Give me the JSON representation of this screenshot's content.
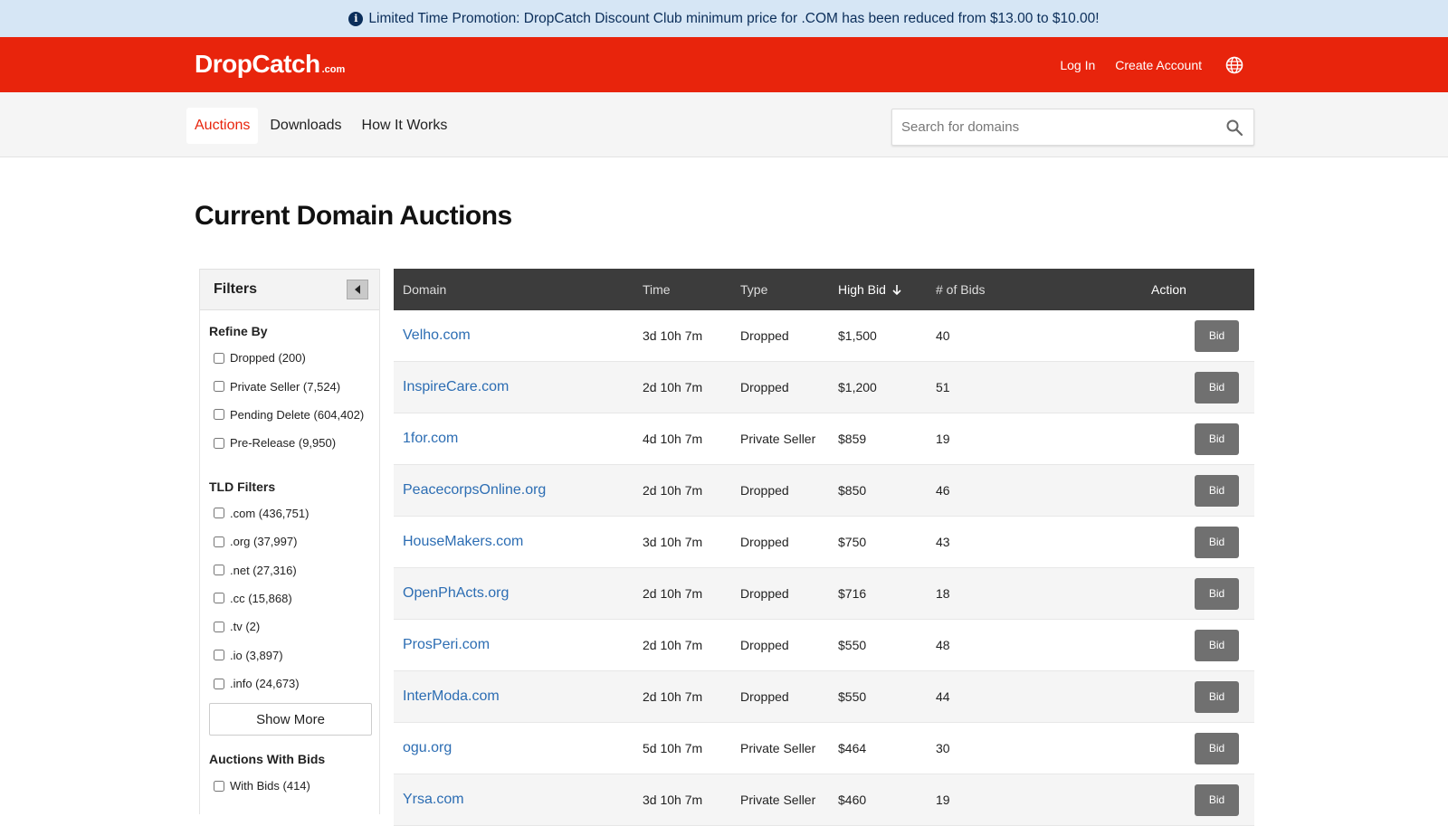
{
  "promo": {
    "text": "Limited Time Promotion: DropCatch Discount Club minimum price for .COM has been reduced from $13.00 to $10.00!"
  },
  "header": {
    "logo": "DropCatch",
    "logo_suffix": ".com",
    "login": "Log In",
    "create_account": "Create Account"
  },
  "nav": {
    "tabs": [
      "Auctions",
      "Downloads",
      "How It Works"
    ],
    "active": "Auctions"
  },
  "search": {
    "placeholder": "Search for domains",
    "value": ""
  },
  "page_title": "Current Domain Auctions",
  "filters": {
    "title": "Filters",
    "refine_title": "Refine By",
    "refine": [
      "Dropped (200)",
      "Private Seller (7,524)",
      "Pending Delete (604,402)",
      "Pre-Release (9,950)"
    ],
    "tld_title": "TLD Filters",
    "tld": [
      ".com (436,751)",
      ".org (37,997)",
      ".net (27,316)",
      ".cc (15,868)",
      ".tv (2)",
      ".io (3,897)",
      ".info (24,673)"
    ],
    "show_more": "Show More",
    "bids_title": "Auctions With Bids",
    "bids": [
      "With Bids (414)"
    ]
  },
  "table": {
    "headers": {
      "domain": "Domain",
      "time": "Time",
      "type": "Type",
      "high_bid": "High Bid",
      "num_bids": "# of Bids",
      "action": "Action"
    },
    "sort": "High Bid descending",
    "button_label": "Bid",
    "rows": [
      {
        "domain": "Velho.com",
        "time": "3d 10h 7m",
        "type": "Dropped",
        "bid": "$1,500",
        "bids": "40"
      },
      {
        "domain": "InspireCare.com",
        "time": "2d 10h 7m",
        "type": "Dropped",
        "bid": "$1,200",
        "bids": "51"
      },
      {
        "domain": "1for.com",
        "time": "4d 10h 7m",
        "type": "Private Seller",
        "bid": "$859",
        "bids": "19"
      },
      {
        "domain": "PeacecorpsOnline.org",
        "time": "2d 10h 7m",
        "type": "Dropped",
        "bid": "$850",
        "bids": "46"
      },
      {
        "domain": "HouseMakers.com",
        "time": "3d 10h 7m",
        "type": "Dropped",
        "bid": "$750",
        "bids": "43"
      },
      {
        "domain": "OpenPhActs.org",
        "time": "2d 10h 7m",
        "type": "Dropped",
        "bid": "$716",
        "bids": "18"
      },
      {
        "domain": "ProsPeri.com",
        "time": "2d 10h 7m",
        "type": "Dropped",
        "bid": "$550",
        "bids": "48"
      },
      {
        "domain": "InterModa.com",
        "time": "2d 10h 7m",
        "type": "Dropped",
        "bid": "$550",
        "bids": "44"
      },
      {
        "domain": "ogu.org",
        "time": "5d 10h 7m",
        "type": "Private Seller",
        "bid": "$464",
        "bids": "30"
      },
      {
        "domain": "Yrsa.com",
        "time": "3d 10h 7m",
        "type": "Private Seller",
        "bid": "$460",
        "bids": "19"
      }
    ]
  },
  "colors": {
    "brand_red": "#e8240c",
    "promo_bg": "#d6e6f5",
    "link_blue": "#2c6db3",
    "table_head": "#3c3c3c",
    "bid_button": "#707070"
  },
  "icons": {
    "promo": "info-icon",
    "language": "globe-icon",
    "search": "search-icon",
    "collapse": "caret-left-icon",
    "sort": "arrow-down-icon"
  }
}
